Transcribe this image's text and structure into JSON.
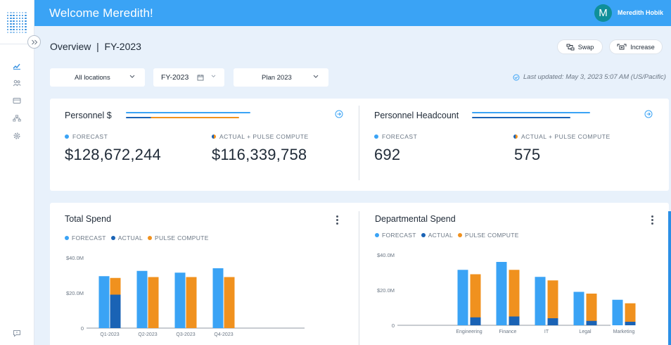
{
  "header": {
    "welcome": "Welcome Meredith!",
    "avatar_initial": "M",
    "user_name": "Meredith Hobik"
  },
  "page": {
    "title": "Overview  |  FY-2023"
  },
  "actions": {
    "swap": "Swap",
    "increase": "Increase"
  },
  "filters": {
    "location": "All locations",
    "year": "FY-2023",
    "plan": "Plan 2023"
  },
  "last_updated": "Last updated: May 3, 2023 5:07 AM (US/Pacific)",
  "colors": {
    "forecast": "#3aa3f5",
    "actual": "#1a63b5",
    "pulse": "#f0911e",
    "header": "#3aa3f5"
  },
  "kpis": {
    "personnel_cost": {
      "title": "Personnel $",
      "forecast_label": "FORECAST",
      "forecast_value": "$128,672,244",
      "actual_label": "ACTUAL + PULSE COMPUTE",
      "actual_value": "$116,339,758"
    },
    "headcount": {
      "title": "Personnel Headcount",
      "forecast_label": "FORECAST",
      "forecast_value": "692",
      "actual_label": "ACTUAL + PULSE COMPUTE",
      "actual_value": "575"
    }
  },
  "legend": {
    "forecast": "FORECAST",
    "actual": "ACTUAL",
    "pulse": "PULSE COMPUTE"
  },
  "chart_data": [
    {
      "type": "bar",
      "title": "Total Spend",
      "categories": [
        "Q1-2023",
        "Q2-2023",
        "Q3-2023",
        "Q4-2023"
      ],
      "ylim": [
        0,
        40
      ],
      "yticks": [
        0,
        20,
        40
      ],
      "ytick_labels": [
        "0",
        "$20.0M",
        "$40.0M"
      ],
      "ylabel": "",
      "xlabel": "",
      "series": [
        {
          "name": "FORECAST",
          "values": [
            29.5,
            32.5,
            31.5,
            34
          ]
        },
        {
          "name": "ACTUAL",
          "values": [
            19,
            0,
            0,
            0
          ]
        },
        {
          "name": "PULSE COMPUTE",
          "values": [
            28.5,
            29,
            29,
            29
          ]
        }
      ]
    },
    {
      "type": "bar",
      "title": "Departmental Spend",
      "categories": [
        "Engineering",
        "Finance",
        "IT",
        "Legal",
        "Marketing"
      ],
      "ylim": [
        0,
        40
      ],
      "yticks": [
        0,
        20,
        40
      ],
      "ytick_labels": [
        "0",
        "$20.0M",
        "$40.0M"
      ],
      "ylabel": "",
      "xlabel": "",
      "series": [
        {
          "name": "FORECAST",
          "values": [
            31.5,
            36,
            27.5,
            19,
            14.5
          ]
        },
        {
          "name": "ACTUAL",
          "values": [
            4.5,
            5,
            4,
            2.5,
            2
          ]
        },
        {
          "name": "PULSE COMPUTE",
          "values": [
            29,
            31.5,
            25.5,
            18,
            12.5
          ]
        }
      ]
    }
  ]
}
